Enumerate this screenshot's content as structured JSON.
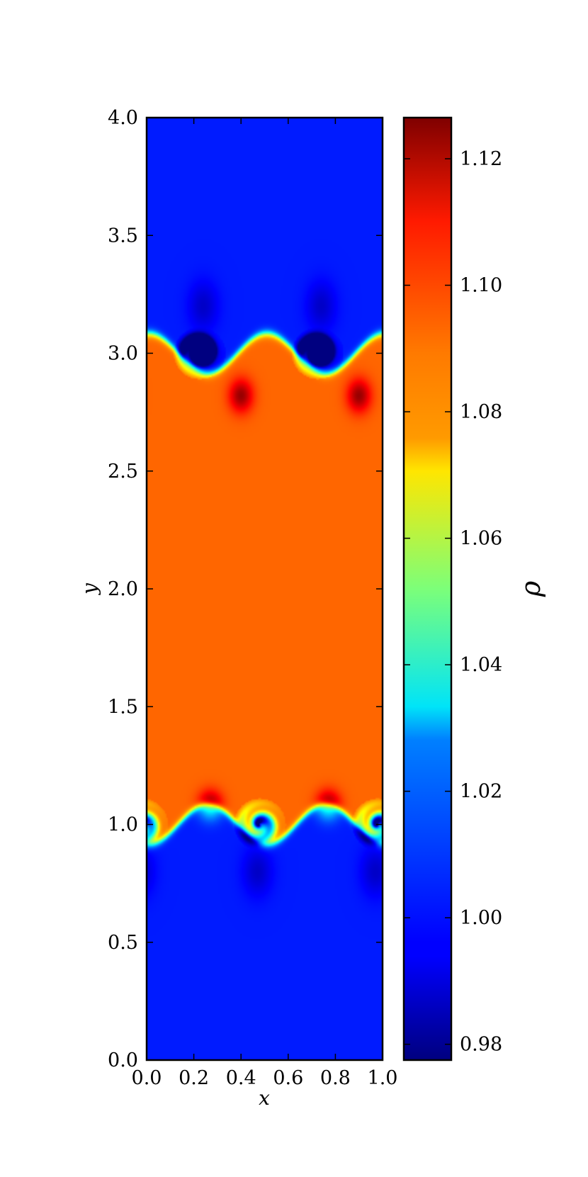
{
  "chart_data": {
    "type": "heatmap",
    "title": "",
    "xlabel": "x",
    "ylabel": "y",
    "xlim": [
      0.0,
      1.0
    ],
    "ylim": [
      0.0,
      4.0
    ],
    "xticks": [
      "0.0",
      "0.2",
      "0.4",
      "0.6",
      "0.8",
      "1.0"
    ],
    "xtick_values": [
      0.0,
      0.2,
      0.4,
      0.6,
      0.8,
      1.0
    ],
    "yticks": [
      "0.0",
      "0.5",
      "1.0",
      "1.5",
      "2.0",
      "2.5",
      "3.0",
      "3.5",
      "4.0"
    ],
    "ytick_values": [
      0.0,
      0.5,
      1.0,
      1.5,
      2.0,
      2.5,
      3.0,
      3.5,
      4.0
    ],
    "colormap": "jet",
    "colorbar": {
      "label": "ρ",
      "range": [
        0.9775,
        1.1265
      ],
      "ticks": [
        "0.98",
        "1.00",
        "1.02",
        "1.04",
        "1.06",
        "1.08",
        "1.10",
        "1.12"
      ],
      "tick_values": [
        0.98,
        1.0,
        1.02,
        1.04,
        1.06,
        1.08,
        1.1,
        1.12
      ]
    },
    "field": {
      "description_values": {
        "outer_density": 1.0,
        "inner_density": 1.093,
        "lower_interface_y": 1.0,
        "upper_interface_y": 3.0,
        "vortices_per_interface": 2,
        "vortex_minimum_density": 0.98,
        "vortex_maximum_density": 1.125
      }
    }
  }
}
